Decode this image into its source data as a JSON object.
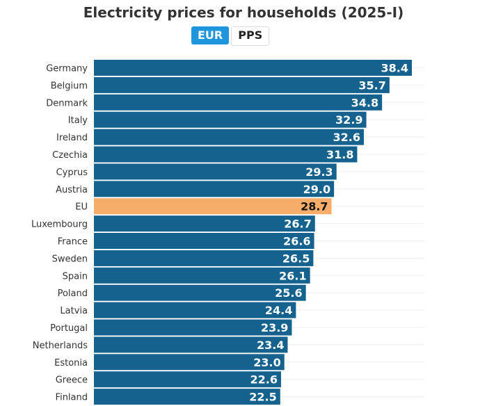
{
  "chart_data": {
    "type": "bar",
    "orientation": "horizontal",
    "title": "Electricity prices for households (2025-I)",
    "categories": [
      "Germany",
      "Belgium",
      "Denmark",
      "Italy",
      "Ireland",
      "Czechia",
      "Cyprus",
      "Austria",
      "EU",
      "Luxembourg",
      "France",
      "Sweden",
      "Spain",
      "Poland",
      "Latvia",
      "Portugal",
      "Netherlands",
      "Estonia",
      "Greece",
      "Finland"
    ],
    "values": [
      38.4,
      35.7,
      34.8,
      32.9,
      32.6,
      31.8,
      29.3,
      29.0,
      28.7,
      26.7,
      26.6,
      26.5,
      26.1,
      25.6,
      24.4,
      23.9,
      23.4,
      23.0,
      22.6,
      22.5
    ],
    "value_labels": [
      "38.4",
      "35.7",
      "34.8",
      "32.9",
      "32.6",
      "31.8",
      "29.3",
      "29.0",
      "28.7",
      "26.7",
      "26.6",
      "26.5",
      "26.1",
      "25.6",
      "24.4",
      "23.9",
      "23.4",
      "23.0",
      "22.6",
      "22.5"
    ],
    "highlight_category": "EU",
    "xlim": [
      0,
      40
    ],
    "grid": true,
    "colors": {
      "bar": "#15628f",
      "highlight": "#f7ad6a"
    }
  },
  "toggle": {
    "options": [
      "EUR",
      "PPS"
    ],
    "selected": "EUR",
    "active_color": "#1e95dd"
  }
}
